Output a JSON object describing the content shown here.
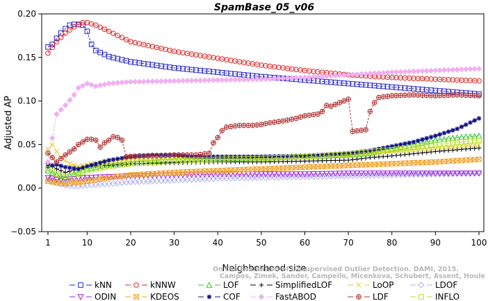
{
  "chart_data": {
    "type": "line",
    "title": "SpamBase_05_v06",
    "xlabel": "Neighborhood size",
    "ylabel": "Adjusted AP",
    "xlim": [
      0,
      101
    ],
    "ylim": [
      -0.05,
      0.2
    ],
    "xticks": [
      1,
      10,
      20,
      30,
      40,
      50,
      60,
      70,
      80,
      90,
      100
    ],
    "yticks": [
      -0.05,
      0.0,
      0.05,
      0.1,
      0.15,
      0.2
    ],
    "ytick_labels": [
      "−0.05",
      "0.00",
      "0.05",
      "0.10",
      "0.15",
      "0.20"
    ],
    "grid": false,
    "legend_position": "bottom",
    "watermark": [
      "Campos, Zimek, Sander, Campello, Micenkova, Schubert, Assent, Houle",
      "On the Evaluation of Unsupervised Outlier Detection. DAMI, 2015."
    ],
    "series": [
      {
        "name": "kNN",
        "color": "#2020d0",
        "marker": "square",
        "keypoints": [
          [
            1,
            0.162
          ],
          [
            2,
            0.165
          ],
          [
            3,
            0.172
          ],
          [
            4,
            0.178
          ],
          [
            5,
            0.183
          ],
          [
            6,
            0.187
          ],
          [
            7,
            0.188
          ],
          [
            8,
            0.188
          ],
          [
            9,
            0.187
          ],
          [
            10,
            0.18
          ],
          [
            11,
            0.165
          ],
          [
            12,
            0.158
          ],
          [
            15,
            0.151
          ],
          [
            20,
            0.145
          ],
          [
            30,
            0.138
          ],
          [
            40,
            0.133
          ],
          [
            50,
            0.128
          ],
          [
            60,
            0.124
          ],
          [
            70,
            0.12
          ],
          [
            80,
            0.116
          ],
          [
            90,
            0.112
          ],
          [
            100,
            0.108
          ]
        ]
      },
      {
        "name": "kNNW",
        "color": "#e02020",
        "marker": "circle",
        "keypoints": [
          [
            1,
            0.155
          ],
          [
            3,
            0.168
          ],
          [
            5,
            0.178
          ],
          [
            7,
            0.185
          ],
          [
            9,
            0.19
          ],
          [
            10,
            0.19
          ],
          [
            12,
            0.187
          ],
          [
            15,
            0.18
          ],
          [
            20,
            0.168
          ],
          [
            30,
            0.157
          ],
          [
            40,
            0.149
          ],
          [
            50,
            0.141
          ],
          [
            60,
            0.135
          ],
          [
            70,
            0.13
          ],
          [
            80,
            0.127
          ],
          [
            90,
            0.125
          ],
          [
            100,
            0.123
          ]
        ]
      },
      {
        "name": "LOF",
        "color": "#30c030",
        "marker": "triangle",
        "keypoints": [
          [
            1,
            0.02
          ],
          [
            3,
            0.015
          ],
          [
            5,
            0.012
          ],
          [
            8,
            0.018
          ],
          [
            10,
            0.022
          ],
          [
            15,
            0.027
          ],
          [
            20,
            0.03
          ],
          [
            30,
            0.033
          ],
          [
            40,
            0.034
          ],
          [
            50,
            0.035
          ],
          [
            60,
            0.036
          ],
          [
            70,
            0.038
          ],
          [
            75,
            0.04
          ],
          [
            80,
            0.045
          ],
          [
            85,
            0.05
          ],
          [
            90,
            0.055
          ],
          [
            95,
            0.058
          ],
          [
            100,
            0.06
          ]
        ]
      },
      {
        "name": "SimplifiedLOF",
        "color": "#000000",
        "marker": "plus",
        "keypoints": [
          [
            1,
            0.028
          ],
          [
            3,
            0.022
          ],
          [
            5,
            0.018
          ],
          [
            8,
            0.022
          ],
          [
            10,
            0.025
          ],
          [
            15,
            0.026
          ],
          [
            20,
            0.028
          ],
          [
            30,
            0.029
          ],
          [
            40,
            0.03
          ],
          [
            50,
            0.03
          ],
          [
            60,
            0.031
          ],
          [
            70,
            0.032
          ],
          [
            75,
            0.035
          ],
          [
            80,
            0.037
          ],
          [
            90,
            0.042
          ],
          [
            100,
            0.046
          ]
        ]
      },
      {
        "name": "LoOP",
        "color": "#e0d020",
        "marker": "x",
        "keypoints": [
          [
            1,
            0.045
          ],
          [
            2,
            0.05
          ],
          [
            3,
            0.042
          ],
          [
            4,
            0.035
          ],
          [
            6,
            0.028
          ],
          [
            8,
            0.025
          ],
          [
            10,
            0.027
          ],
          [
            15,
            0.03
          ],
          [
            20,
            0.032
          ],
          [
            30,
            0.034
          ],
          [
            40,
            0.034
          ],
          [
            50,
            0.035
          ],
          [
            60,
            0.036
          ],
          [
            70,
            0.038
          ],
          [
            80,
            0.042
          ],
          [
            90,
            0.046
          ],
          [
            100,
            0.05
          ]
        ]
      },
      {
        "name": "LDOF",
        "color": "#b0b0f0",
        "marker": "diamond",
        "keypoints": [
          [
            1,
            0.01
          ],
          [
            3,
            0.006
          ],
          [
            5,
            0.003
          ],
          [
            8,
            0.002
          ],
          [
            10,
            0.003
          ],
          [
            15,
            0.005
          ],
          [
            20,
            0.007
          ],
          [
            30,
            0.009
          ],
          [
            40,
            0.011
          ],
          [
            50,
            0.012
          ],
          [
            60,
            0.013
          ],
          [
            70,
            0.014
          ],
          [
            80,
            0.015
          ],
          [
            90,
            0.016
          ],
          [
            100,
            0.017
          ]
        ]
      },
      {
        "name": "ODIN",
        "color": "#a020e0",
        "marker": "triangle-down",
        "keypoints": [
          [
            1,
            0.012
          ],
          [
            3,
            0.01
          ],
          [
            5,
            0.01
          ],
          [
            10,
            0.012
          ],
          [
            20,
            0.014
          ],
          [
            30,
            0.015
          ],
          [
            40,
            0.016
          ],
          [
            50,
            0.016
          ],
          [
            60,
            0.016
          ],
          [
            70,
            0.017
          ],
          [
            80,
            0.017
          ],
          [
            90,
            0.017
          ],
          [
            100,
            0.017
          ]
        ]
      },
      {
        "name": "KDEOS",
        "color": "#f0a020",
        "marker": "square-x",
        "keypoints": [
          [
            1,
            0.008
          ],
          [
            3,
            0.006
          ],
          [
            5,
            0.005
          ],
          [
            10,
            0.008
          ],
          [
            15,
            0.012
          ],
          [
            20,
            0.015
          ],
          [
            30,
            0.018
          ],
          [
            40,
            0.02
          ],
          [
            50,
            0.022
          ],
          [
            60,
            0.024
          ],
          [
            70,
            0.026
          ],
          [
            80,
            0.028
          ],
          [
            90,
            0.03
          ],
          [
            100,
            0.033
          ]
        ]
      },
      {
        "name": "COF",
        "color": "#101080",
        "marker": "asterisk",
        "keypoints": [
          [
            1,
            0.025
          ],
          [
            3,
            0.027
          ],
          [
            5,
            0.024
          ],
          [
            8,
            0.022
          ],
          [
            10,
            0.025
          ],
          [
            15,
            0.032
          ],
          [
            20,
            0.036
          ],
          [
            25,
            0.038
          ],
          [
            30,
            0.038
          ],
          [
            35,
            0.036
          ],
          [
            40,
            0.036
          ],
          [
            50,
            0.036
          ],
          [
            60,
            0.037
          ],
          [
            70,
            0.04
          ],
          [
            75,
            0.043
          ],
          [
            80,
            0.048
          ],
          [
            85,
            0.053
          ],
          [
            90,
            0.06
          ],
          [
            95,
            0.068
          ],
          [
            100,
            0.08
          ]
        ]
      },
      {
        "name": "FastABOD",
        "color": "#f0b0f0",
        "marker": "diamond-filled",
        "keypoints": [
          [
            1,
            0.03
          ],
          [
            3,
            0.085
          ],
          [
            5,
            0.095
          ],
          [
            7,
            0.107
          ],
          [
            8,
            0.115
          ],
          [
            10,
            0.12
          ],
          [
            12,
            0.117
          ],
          [
            15,
            0.12
          ],
          [
            20,
            0.122
          ],
          [
            30,
            0.123
          ],
          [
            40,
            0.124
          ],
          [
            50,
            0.125
          ],
          [
            60,
            0.127
          ],
          [
            70,
            0.13
          ],
          [
            80,
            0.133
          ],
          [
            90,
            0.135
          ],
          [
            100,
            0.137
          ]
        ]
      },
      {
        "name": "LDF",
        "color": "#b03030",
        "marker": "circle-plus",
        "keypoints": [
          [
            1,
            0.04
          ],
          [
            3,
            0.03
          ],
          [
            5,
            0.038
          ],
          [
            7,
            0.045
          ],
          [
            8,
            0.05
          ],
          [
            10,
            0.056
          ],
          [
            11,
            0.056
          ],
          [
            12,
            0.055
          ],
          [
            13,
            0.047
          ],
          [
            14,
            0.052
          ],
          [
            15,
            0.055
          ],
          [
            16,
            0.059
          ],
          [
            17,
            0.058
          ],
          [
            18,
            0.055
          ],
          [
            19,
            0.036
          ],
          [
            22,
            0.037
          ],
          [
            26,
            0.037
          ],
          [
            30,
            0.038
          ],
          [
            35,
            0.038
          ],
          [
            38,
            0.04
          ],
          [
            39,
            0.052
          ],
          [
            40,
            0.058
          ],
          [
            41,
            0.066
          ],
          [
            42,
            0.07
          ],
          [
            45,
            0.072
          ],
          [
            48,
            0.072
          ],
          [
            50,
            0.073
          ],
          [
            52,
            0.075
          ],
          [
            55,
            0.077
          ],
          [
            58,
            0.08
          ],
          [
            60,
            0.083
          ],
          [
            63,
            0.085
          ],
          [
            64,
            0.088
          ],
          [
            65,
            0.095
          ],
          [
            66,
            0.094
          ],
          [
            67,
            0.096
          ],
          [
            68,
            0.098
          ],
          [
            69,
            0.1
          ],
          [
            70,
            0.102
          ],
          [
            71,
            0.065
          ],
          [
            74,
            0.067
          ],
          [
            75,
            0.088
          ],
          [
            76,
            0.098
          ],
          [
            77,
            0.104
          ],
          [
            80,
            0.106
          ],
          [
            85,
            0.107
          ],
          [
            90,
            0.106
          ],
          [
            95,
            0.107
          ],
          [
            100,
            0.106
          ]
        ]
      },
      {
        "name": "INFLO",
        "color": "#b0e020",
        "marker": "square-dots",
        "keypoints": [
          [
            1,
            0.022
          ],
          [
            3,
            0.016
          ],
          [
            5,
            0.013
          ],
          [
            8,
            0.016
          ],
          [
            10,
            0.02
          ],
          [
            15,
            0.025
          ],
          [
            20,
            0.028
          ],
          [
            30,
            0.031
          ],
          [
            40,
            0.033
          ],
          [
            50,
            0.034
          ],
          [
            60,
            0.036
          ],
          [
            70,
            0.039
          ],
          [
            80,
            0.044
          ],
          [
            90,
            0.05
          ],
          [
            100,
            0.055
          ]
        ]
      }
    ]
  }
}
